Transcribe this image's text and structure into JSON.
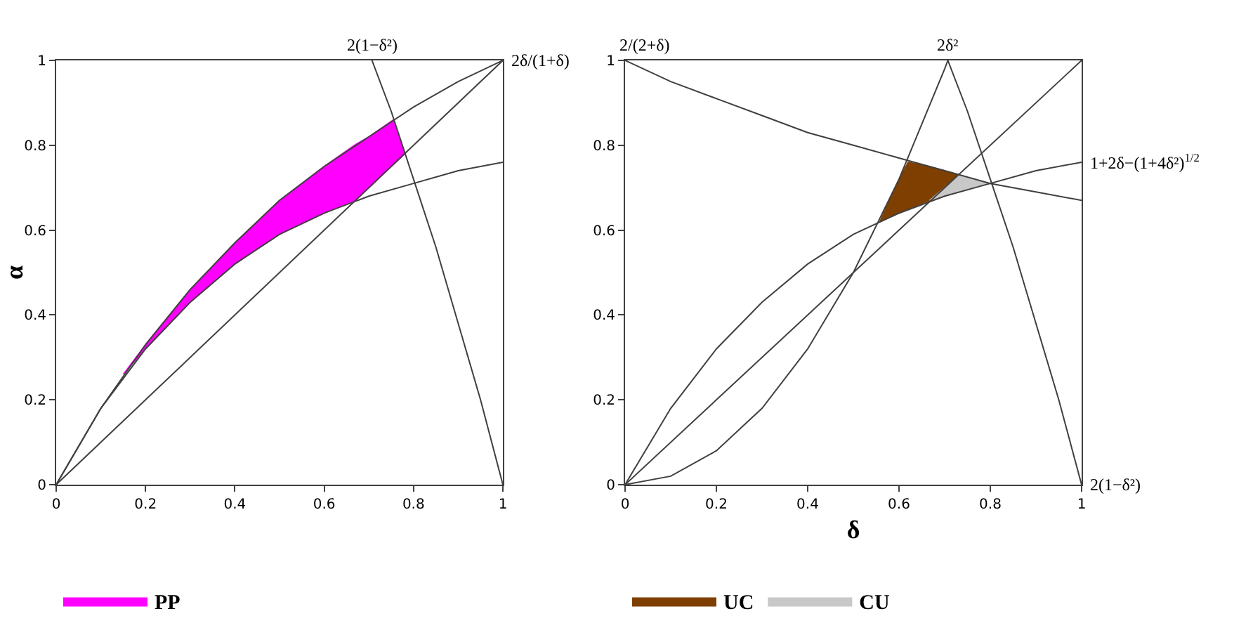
{
  "chart_data": [
    {
      "type": "line",
      "ylabel": "α",
      "xlim": [
        0,
        1
      ],
      "ylim": [
        0,
        1
      ],
      "xticks": [
        0,
        0.2,
        0.4,
        0.6,
        0.8,
        1
      ],
      "yticks": [
        0,
        0.2,
        0.4,
        0.6,
        0.8,
        1
      ],
      "legend": "bottom",
      "annotations": [
        {
          "text": "2(1−δ²)",
          "x": 0.707,
          "y": 1
        },
        {
          "text": "2δ/(1+δ)",
          "x": 1,
          "y": 1
        }
      ],
      "series": [
        {
          "type": "area",
          "name": "PP",
          "color": "#ff00ff",
          "x": [
            0.15,
            0.2,
            0.3,
            0.4,
            0.5,
            0.6,
            0.667,
            0.7,
            0.755,
            0.781,
            0.7,
            0.667,
            0.6,
            0.5,
            0.4,
            0.3,
            0.2,
            0.15
          ],
          "values": [
            0.26,
            0.33,
            0.46,
            0.57,
            0.67,
            0.75,
            0.8,
            0.82,
            0.86,
            0.78,
            0.7,
            0.67,
            0.64,
            0.59,
            0.52,
            0.43,
            0.32,
            0.26
          ]
        },
        {
          "color": "#404040",
          "x": [
            0,
            1
          ],
          "values": [
            0,
            1
          ]
        },
        {
          "color": "#404040",
          "x": [
            0,
            0.1,
            0.2,
            0.3,
            0.4,
            0.5,
            0.6,
            0.7,
            0.8,
            0.9,
            1
          ],
          "values": [
            0,
            0.18,
            0.33,
            0.46,
            0.57,
            0.67,
            0.75,
            0.82,
            0.89,
            0.95,
            1
          ]
        },
        {
          "color": "#404040",
          "x": [
            0,
            0.1,
            0.2,
            0.3,
            0.4,
            0.5,
            0.6,
            0.7,
            0.8,
            0.9,
            1
          ],
          "values": [
            0,
            0.18,
            0.32,
            0.43,
            0.52,
            0.59,
            0.64,
            0.68,
            0.71,
            0.74,
            0.76
          ]
        },
        {
          "color": "#404040",
          "x": [
            0.707,
            0.75,
            0.8,
            0.85,
            0.9,
            0.95,
            1
          ],
          "values": [
            1,
            0.88,
            0.72,
            0.56,
            0.38,
            0.2,
            0
          ]
        }
      ]
    },
    {
      "type": "line",
      "xlabel": "δ",
      "xlim": [
        0,
        1
      ],
      "ylim": [
        0,
        1
      ],
      "xticks": [
        0,
        0.2,
        0.4,
        0.6,
        0.8,
        1
      ],
      "yticks": [
        0,
        0.2,
        0.4,
        0.6,
        0.8,
        1
      ],
      "legend": "bottom",
      "annotations": [
        {
          "text": "2/(2+δ)",
          "x": 0,
          "y": 1
        },
        {
          "text": "2δ²",
          "x": 0.707,
          "y": 1
        },
        {
          "text": "1+2δ−(1+4δ²)$^{1/2}$",
          "x": 1,
          "y": 0.76
        },
        {
          "text": "2(1−δ²)",
          "x": 1,
          "y": 0
        }
      ],
      "series": [
        {
          "type": "area",
          "name": "UC",
          "color": "#7f3f00",
          "x": [
            0.558,
            0.6,
            0.62,
            0.667,
            0.7,
            0.732,
            0.667,
            0.62,
            0.6,
            0.558
          ],
          "values": [
            0.62,
            0.72,
            0.76,
            0.75,
            0.74,
            0.73,
            0.67,
            0.65,
            0.64,
            0.62
          ]
        },
        {
          "type": "area",
          "name": "CU",
          "color": "#c8c8c8",
          "x": [
            0.667,
            0.7,
            0.732,
            0.76,
            0.8,
            0.76,
            0.732,
            0.7,
            0.667
          ],
          "values": [
            0.67,
            0.7,
            0.73,
            0.72,
            0.71,
            0.7,
            0.69,
            0.68,
            0.67
          ]
        },
        {
          "color": "#404040",
          "x": [
            0,
            1
          ],
          "values": [
            0,
            1
          ]
        },
        {
          "color": "#404040",
          "x": [
            0,
            0.1,
            0.2,
            0.3,
            0.4,
            0.5,
            0.6,
            0.7,
            0.8,
            0.9,
            1
          ],
          "values": [
            1,
            0.95,
            0.91,
            0.87,
            0.83,
            0.8,
            0.77,
            0.74,
            0.71,
            0.69,
            0.67
          ]
        },
        {
          "color": "#404040",
          "x": [
            0,
            0.1,
            0.2,
            0.3,
            0.4,
            0.5,
            0.6,
            0.7,
            0.707
          ],
          "values": [
            0,
            0.02,
            0.08,
            0.18,
            0.32,
            0.5,
            0.72,
            0.98,
            1
          ]
        },
        {
          "color": "#404040",
          "x": [
            0,
            0.1,
            0.2,
            0.3,
            0.4,
            0.5,
            0.6,
            0.7,
            0.8,
            0.9,
            1
          ],
          "values": [
            0,
            0.18,
            0.32,
            0.43,
            0.52,
            0.59,
            0.64,
            0.68,
            0.71,
            0.74,
            0.76
          ]
        },
        {
          "color": "#404040",
          "x": [
            0.707,
            0.75,
            0.8,
            0.85,
            0.9,
            0.95,
            1
          ],
          "values": [
            1,
            0.88,
            0.72,
            0.56,
            0.38,
            0.2,
            0
          ]
        }
      ]
    }
  ]
}
